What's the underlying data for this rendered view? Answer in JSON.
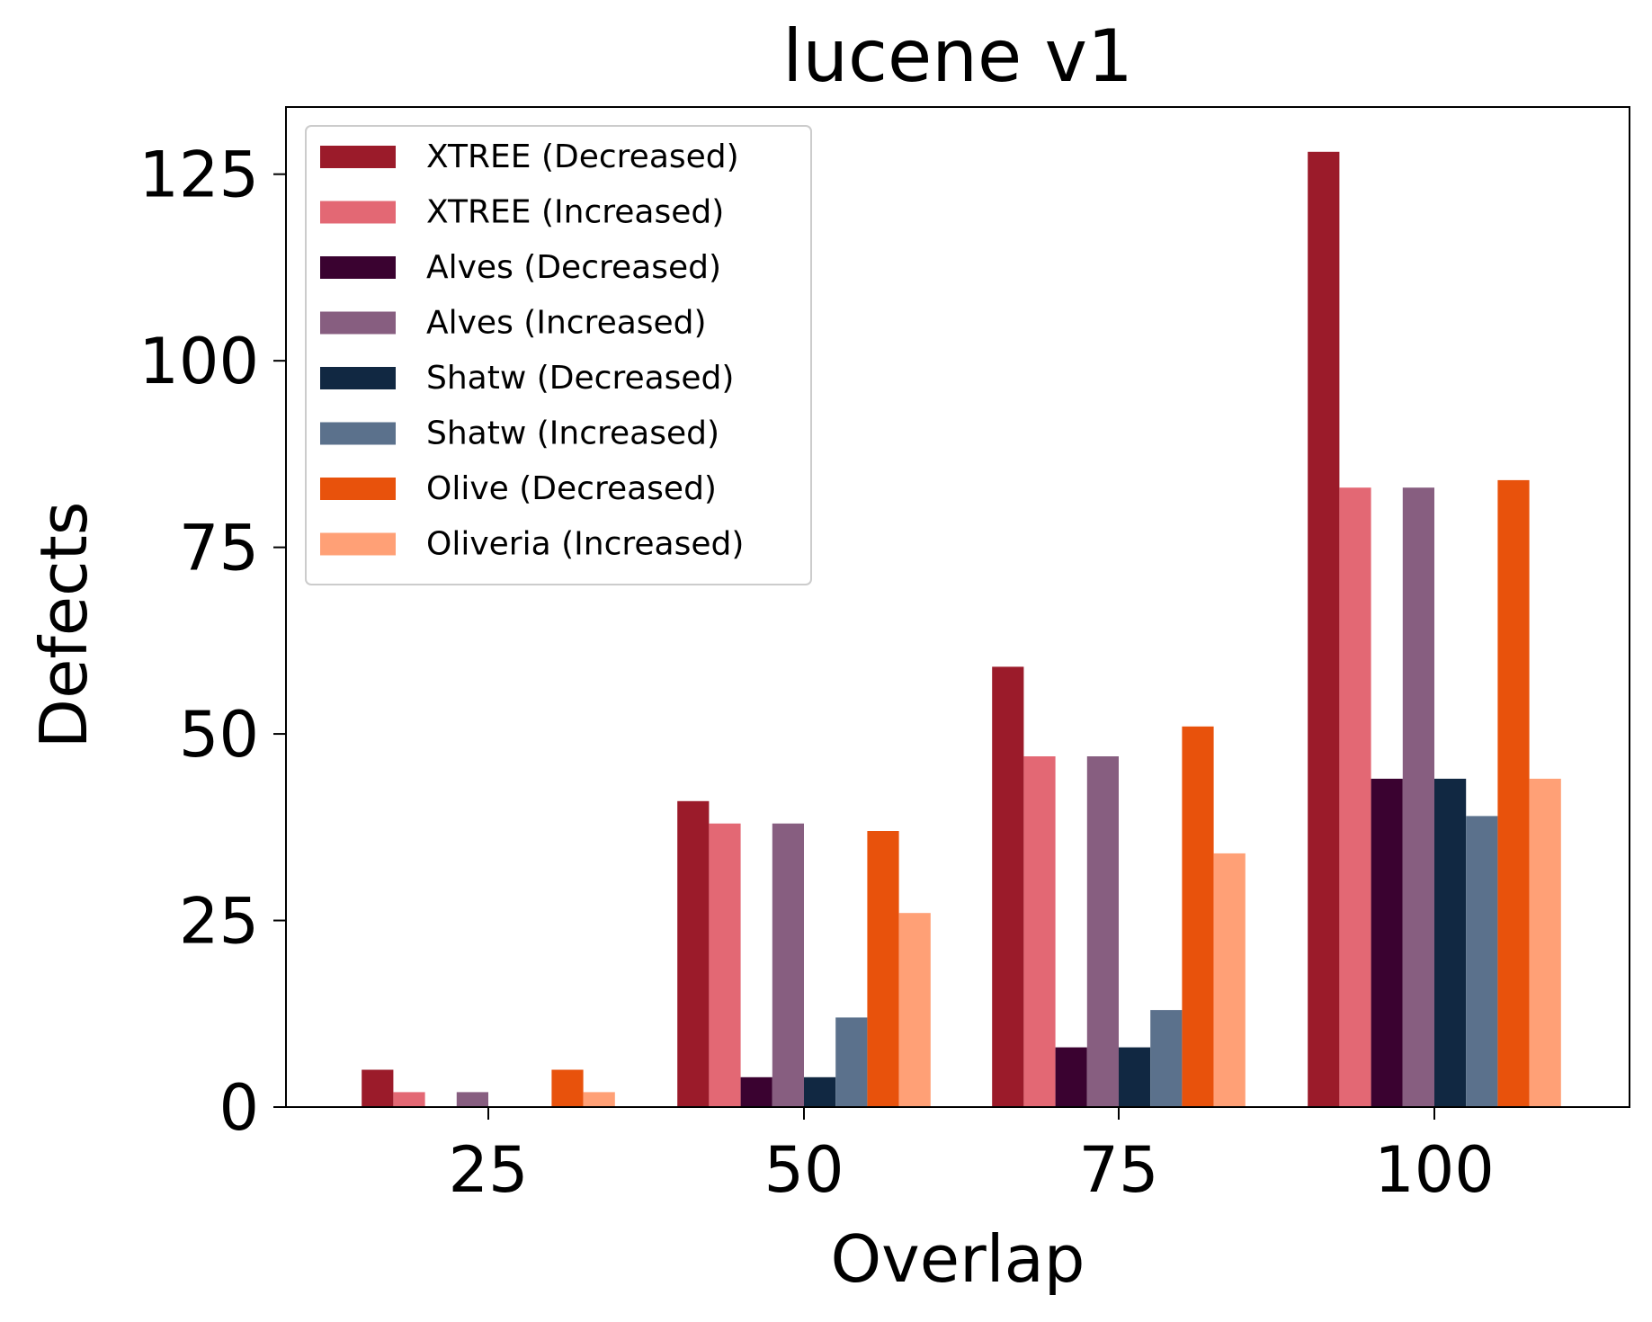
{
  "chart_data": {
    "type": "bar",
    "title": "lucene v1",
    "xlabel": "Overlap",
    "ylabel": "Defects",
    "categories": [
      "25",
      "50",
      "75",
      "100"
    ],
    "x_ticks": [
      "25",
      "50",
      "75",
      "100"
    ],
    "y_ticks": [
      "0",
      "25",
      "50",
      "75",
      "100",
      "125"
    ],
    "ylim": [
      0,
      134
    ],
    "grid": false,
    "legend_position": "top-left",
    "series": [
      {
        "name": "XTREE (Decreased)",
        "color": "#9b1b2a",
        "values": [
          5,
          41,
          59,
          128
        ]
      },
      {
        "name": "XTREE (Increased)",
        "color": "#e36874",
        "values": [
          2,
          38,
          47,
          83
        ]
      },
      {
        "name": "Alves (Decreased)",
        "color": "#3a0230",
        "values": [
          0,
          4,
          8,
          44
        ]
      },
      {
        "name": "Alves (Increased)",
        "color": "#875e80",
        "values": [
          2,
          38,
          47,
          83
        ]
      },
      {
        "name": "Shatw (Decreased)",
        "color": "#112842",
        "values": [
          0,
          4,
          8,
          44
        ]
      },
      {
        "name": "Shatw (Increased)",
        "color": "#5b718c",
        "values": [
          0,
          12,
          13,
          39
        ]
      },
      {
        "name": "Olive (Decreased)",
        "color": "#e8520c",
        "values": [
          5,
          37,
          51,
          84
        ]
      },
      {
        "name": "Oliveria (Increased)",
        "color": "#ffa076",
        "values": [
          2,
          26,
          34,
          44
        ]
      }
    ]
  }
}
